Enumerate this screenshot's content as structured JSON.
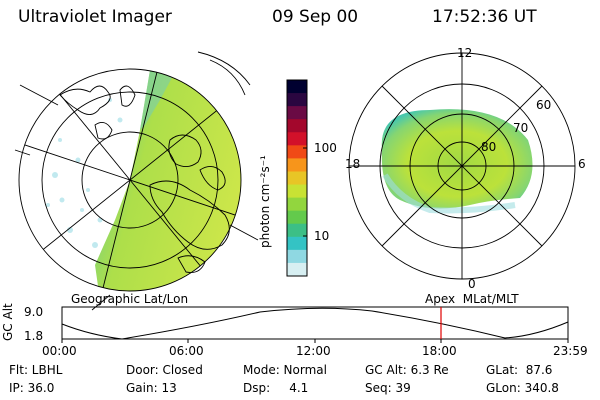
{
  "header": {
    "instrument": "Ultraviolet Imager",
    "date": "09 Sep 00",
    "time": "17:52:36 UT"
  },
  "colorbar": {
    "unit_label": "photon cm⁻²s⁻¹",
    "tick_labels": [
      "100",
      "10"
    ],
    "colors": [
      "#000030",
      "#2a0640",
      "#6a0a44",
      "#a3072c",
      "#d2112a",
      "#f04a16",
      "#f7951b",
      "#e8c526",
      "#c8e234",
      "#92d63e",
      "#63ca4c",
      "#3cbf86",
      "#34c3c4",
      "#8fd8e2",
      "#d7eff2"
    ]
  },
  "left_map": {
    "caption": "Geographic Lat/Lon"
  },
  "right_polar": {
    "caption": "Apex  MLat/MLT",
    "mlt_labels": [
      "12",
      "18",
      "6",
      "0"
    ],
    "lat_labels": [
      "60",
      "70",
      "80"
    ]
  },
  "altitude_plot": {
    "ylabel": "GC Alt",
    "ytick_labels": [
      "9.0",
      "1.8"
    ],
    "xtick_labels": [
      "00:00",
      "06:00",
      "12:00",
      "18:00",
      "23:59"
    ],
    "marker_color": "#e00000"
  },
  "info": {
    "filter": "Flt: LBHL",
    "ip": "IP: 36.0",
    "door": "Door: Closed",
    "gain": "Gain: 13",
    "mode": "Mode: Normal",
    "dsp": "Dsp:     4.1",
    "gcalt": "GC Alt: 6.3 Re",
    "seq": "Seq: 39",
    "glat": "GLat:  87.6",
    "glon": "GLon: 340.8"
  }
}
